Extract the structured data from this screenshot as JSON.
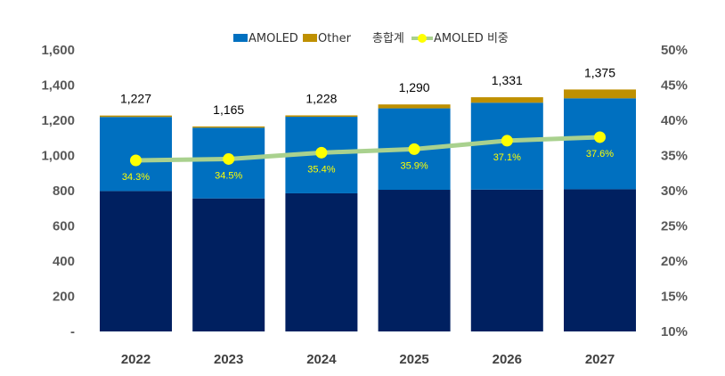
{
  "chart_data": {
    "type": "bar",
    "stacked": true,
    "categories": [
      "2022",
      "2023",
      "2024",
      "2025",
      "2026",
      "2027"
    ],
    "series": [
      {
        "name": "Other",
        "role": "bar-stack",
        "color": "#BF9000",
        "values": [
          8,
          7,
          8,
          22,
          31,
          50
        ]
      },
      {
        "name": "AMOLED",
        "role": "bar-stack",
        "color": "#0070C0",
        "values": [
          421,
          402,
          435,
          463,
          494,
          517
        ]
      },
      {
        "name": "",
        "role": "bar-stack-base",
        "color": "#002060",
        "values": [
          798,
          756,
          785,
          805,
          806,
          808
        ]
      }
    ],
    "totals": [
      "1,227",
      "1,165",
      "1,228",
      "1,290",
      "1,331",
      "1,375"
    ],
    "totals_values": [
      1227,
      1165,
      1228,
      1290,
      1331,
      1375
    ],
    "total_series_name": "총합계",
    "line_series": {
      "name": "AMOLED 비중",
      "axis": "right",
      "color": "#A9D18E",
      "marker_color": "#FFFF00",
      "values": [
        34.3,
        34.5,
        35.4,
        35.9,
        37.1,
        37.6
      ],
      "labels": [
        "34.3%",
        "34.5%",
        "35.4%",
        "35.9%",
        "37.1%",
        "37.6%"
      ]
    },
    "y_left": {
      "lim": [
        0,
        1600
      ],
      "ticks": [
        0,
        200,
        400,
        600,
        800,
        1000,
        1200,
        1400,
        1600
      ],
      "tick_labels": [
        "-",
        "200",
        "400",
        "600",
        "800",
        "1,000",
        "1,200",
        "1,400",
        "1,600"
      ]
    },
    "y_right": {
      "lim": [
        10,
        50
      ],
      "ticks": [
        10,
        15,
        20,
        25,
        30,
        35,
        40,
        45,
        50
      ],
      "tick_labels": [
        "10%",
        "15%",
        "20%",
        "25%",
        "30%",
        "35%",
        "40%",
        "45%",
        "50%"
      ]
    },
    "legend_position": "top",
    "grid": false,
    "title": "",
    "xlabel": "",
    "ylabel": ""
  }
}
